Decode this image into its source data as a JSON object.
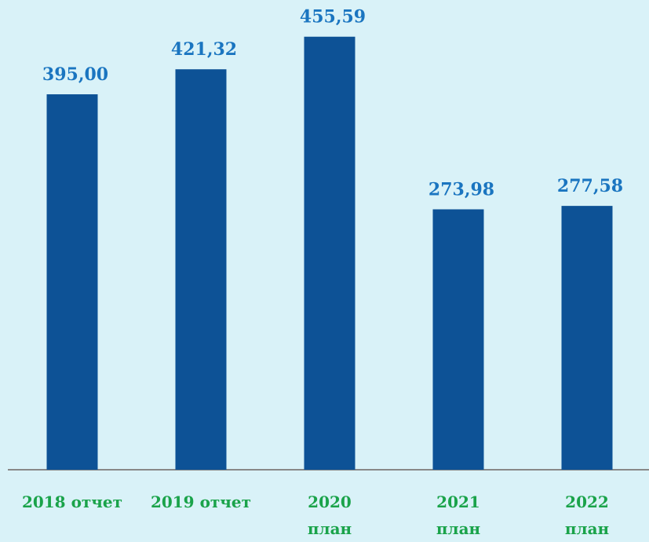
{
  "chart_data": {
    "type": "bar",
    "categories": [
      "2018 отчет",
      "2019 отчет",
      "2020\nплан",
      "2021\nплан",
      "2022\nплан"
    ],
    "values": [
      395.0,
      421.32,
      455.59,
      273.98,
      277.58
    ],
    "value_labels": [
      "395,00",
      "421,32",
      "455,59",
      "273,98",
      "277,58"
    ],
    "color": "#0d5296",
    "ylim": [
      0,
      500
    ]
  }
}
